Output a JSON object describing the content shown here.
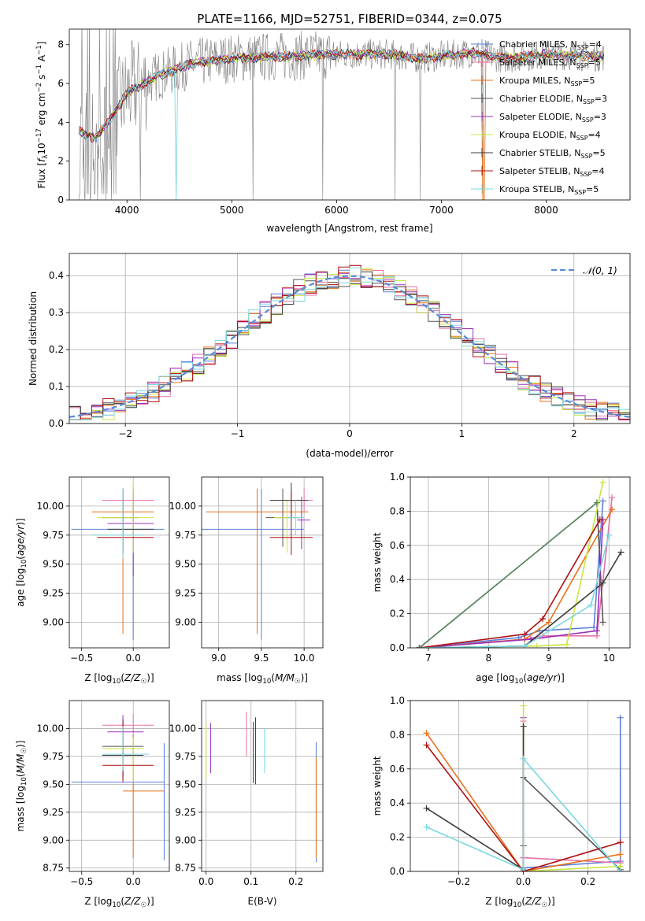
{
  "figure_title": "PLATE=1166, MJD=52751, FIBERID=0344, z=0.075",
  "colors": {
    "Chabrier MILES": "#5b7fd8",
    "Salpeter MILES": "#e86fa8",
    "Kroupa MILES": "#e8701a",
    "Chabrier ELODIE": "#555555",
    "Salpeter ELODIE": "#9b30b8",
    "Kroupa ELODIE": "#c8e641",
    "Chabrier STELIB": "#3b3b3b",
    "Salpeter STELIB": "#b01010",
    "Kroupa STELIB": "#7ad8e0",
    "data": "#808080",
    "normal": "#5b8bd8",
    "green_line": "#5a8a60"
  },
  "chart_data": [
    {
      "id": "spectrum",
      "type": "line",
      "xlabel": "wavelength [Angstrom, rest frame]",
      "ylabel": "Flux [fλ10⁻¹⁷ erg cm⁻² s⁻¹ A⁻¹]",
      "xlim": [
        3450,
        8800
      ],
      "ylim": [
        0,
        8.8
      ],
      "xticks": [
        4000,
        5000,
        6000,
        7000,
        8000
      ],
      "yticks": [
        0,
        2,
        4,
        6,
        8
      ],
      "grid": false,
      "legend_position": "top-right",
      "series": [
        {
          "name": "Chabrier MILES, N",
          "sub": "SSP",
          "suffix": "=4"
        },
        {
          "name": "Salpeter MILES, N",
          "sub": "SSP",
          "suffix": "=5"
        },
        {
          "name": "Kroupa MILES, N",
          "sub": "SSP",
          "suffix": "=5"
        },
        {
          "name": "Chabrier ELODIE, N",
          "sub": "SSP",
          "suffix": "=3"
        },
        {
          "name": "Salpeter ELODIE, N",
          "sub": "SSP",
          "suffix": "=3"
        },
        {
          "name": "Kroupa ELODIE, N",
          "sub": "SSP",
          "suffix": "=4"
        },
        {
          "name": "Chabrier STELIB, N",
          "sub": "SSP",
          "suffix": "=5"
        },
        {
          "name": "Salpeter STELIB, N",
          "sub": "SSP",
          "suffix": "=4"
        },
        {
          "name": "Kroupa STELIB, N",
          "sub": "SSP",
          "suffix": "=5"
        }
      ],
      "continuum": [
        [
          3550,
          3.5
        ],
        [
          3700,
          3.2
        ],
        [
          3850,
          4.2
        ],
        [
          4000,
          5.5
        ],
        [
          4300,
          6.4
        ],
        [
          4600,
          7.0
        ],
        [
          5000,
          7.3
        ],
        [
          5500,
          7.4
        ],
        [
          6000,
          7.5
        ],
        [
          6500,
          7.5
        ],
        [
          6800,
          7.3
        ],
        [
          7000,
          7.4
        ],
        [
          7300,
          7.6
        ],
        [
          7600,
          7.3
        ],
        [
          8000,
          7.5
        ],
        [
          8500,
          7.4
        ]
      ],
      "data_spikes_to_zero": [
        3540,
        3600,
        3650,
        3720,
        3800,
        3850,
        4130,
        5200,
        5870,
        6560,
        6800,
        7400
      ]
    },
    {
      "id": "residuals",
      "type": "histogram",
      "xlabel": "(data-model)/error",
      "ylabel": "Normed distribution",
      "xlim": [
        -2.5,
        2.5
      ],
      "ylim": [
        0,
        0.46
      ],
      "xticks": [
        -2,
        -1,
        0,
        1,
        2
      ],
      "yticks": [
        0.0,
        0.1,
        0.2,
        0.3,
        0.4
      ],
      "grid": true,
      "legend_position": "top-right",
      "legend_label": "𝒩(0, 1)",
      "bin_width": 0.1
    },
    {
      "id": "age_vs_Z",
      "type": "errorbar",
      "xlabel": "Z [log₁₀(Z/Z☉)]",
      "ylabel": "age  [log₁₀(age/yr)]",
      "xlim": [
        -0.62,
        0.35
      ],
      "ylim": [
        8.78,
        10.25
      ],
      "xticks": [
        -0.5,
        0.0
      ],
      "yticks": [
        9.0,
        9.25,
        9.5,
        9.75,
        10.0
      ],
      "grid": true,
      "points": [
        {
          "series": "Chabrier MILES",
          "x": 0.0,
          "xerr": [
            0.6,
            0.3
          ],
          "y": 9.8,
          "yerr": [
            0.95,
            0.35
          ]
        },
        {
          "series": "Salpeter MILES",
          "x": 0.0,
          "xerr": [
            0.3,
            0.2
          ],
          "y": 10.05,
          "yerr": [
            0.15,
            0.12
          ]
        },
        {
          "series": "Kroupa MILES",
          "x": -0.1,
          "xerr": [
            0.3,
            0.3
          ],
          "y": 9.95,
          "yerr": [
            1.05,
            0.2
          ]
        },
        {
          "series": "Chabrier ELODIE",
          "x": -0.1,
          "xerr": [
            0.2,
            0.15
          ],
          "y": 9.9,
          "yerr": [
            0.25,
            0.25
          ]
        },
        {
          "series": "Salpeter ELODIE",
          "x": 0.0,
          "xerr": [
            0.25,
            0.2
          ],
          "y": 9.85,
          "yerr": [
            0.45,
            0.25
          ]
        },
        {
          "series": "Kroupa ELODIE",
          "x": 0.0,
          "xerr": [
            0.35,
            0.2
          ],
          "y": 9.9,
          "yerr": [
            0.3,
            0.3
          ]
        },
        {
          "series": "Chabrier STELIB",
          "x": -0.1,
          "xerr": [
            0.15,
            0.3
          ],
          "y": 9.8,
          "yerr": [
            0.2,
            0.35
          ]
        },
        {
          "series": "Salpeter STELIB",
          "x": -0.1,
          "xerr": [
            0.25,
            0.3
          ],
          "y": 9.73,
          "yerr": [
            0.15,
            0.4
          ]
        },
        {
          "series": "Kroupa STELIB",
          "x": -0.1,
          "xerr": [
            0.3,
            0.2
          ],
          "y": 9.75,
          "yerr": [
            0.2,
            0.4
          ]
        }
      ]
    },
    {
      "id": "age_vs_mass",
      "type": "errorbar",
      "xlabel": "mass [log₁₀(M/M☉)]",
      "ylabel": "",
      "xlim": [
        8.8,
        10.22
      ],
      "ylim": [
        8.78,
        10.25
      ],
      "xticks": [
        9.0,
        9.5,
        10.0
      ],
      "yticks": [
        9.0,
        9.25,
        9.5,
        9.75,
        10.0
      ],
      "grid": true,
      "points": [
        {
          "series": "Chabrier MILES",
          "x": 9.5,
          "xerr": [
            0.7,
            0.5
          ],
          "y": 9.8,
          "yerr": [
            0.95,
            0.35
          ]
        },
        {
          "series": "Salpeter MILES",
          "x": 10.0,
          "xerr": [
            0.15,
            0.1
          ],
          "y": 10.05,
          "yerr": [
            0.1,
            0.1
          ]
        },
        {
          "series": "Kroupa MILES",
          "x": 9.45,
          "xerr": [
            0.6,
            0.6
          ],
          "y": 9.95,
          "yerr": [
            1.05,
            0.2
          ]
        },
        {
          "series": "Chabrier ELODIE",
          "x": 9.75,
          "xerr": [
            0.2,
            0.2
          ],
          "y": 9.9,
          "yerr": [
            0.25,
            0.25
          ]
        },
        {
          "series": "Salpeter ELODIE",
          "x": 9.97,
          "xerr": [
            0.05,
            0.1
          ],
          "y": 9.88,
          "yerr": [
            0.25,
            0.2
          ]
        },
        {
          "series": "Kroupa ELODIE",
          "x": 9.8,
          "xerr": [
            0.15,
            0.15
          ],
          "y": 9.9,
          "yerr": [
            0.3,
            0.15
          ]
        },
        {
          "series": "Chabrier STELIB",
          "x": 9.85,
          "xerr": [
            0.25,
            0.2
          ],
          "y": 10.05,
          "yerr": [
            0.15,
            0.15
          ]
        },
        {
          "series": "Salpeter STELIB",
          "x": 9.85,
          "xerr": [
            0.25,
            0.25
          ],
          "y": 9.73,
          "yerr": [
            0.15,
            0.4
          ]
        },
        {
          "series": "Kroupa STELIB",
          "x": 9.9,
          "xerr": [
            0.1,
            0.1
          ],
          "y": 9.9,
          "yerr": [
            0.15,
            0.15
          ]
        }
      ]
    },
    {
      "id": "massweight_vs_age",
      "type": "line",
      "xlabel": "age  [log₁₀(age/yr)]",
      "ylabel": "mass weight",
      "xlim": [
        6.7,
        10.35
      ],
      "ylim": [
        0.0,
        1.0
      ],
      "xticks": [
        7,
        8,
        9,
        10
      ],
      "yticks": [
        0.0,
        0.2,
        0.4,
        0.6,
        0.8,
        1.0
      ],
      "grid": true,
      "series": [
        {
          "name": "Chabrier MILES",
          "x": [
            6.85,
            8.5,
            8.85,
            9.75,
            9.9
          ],
          "y": [
            0.0,
            0.06,
            0.1,
            0.12,
            0.86
          ]
        },
        {
          "name": "Salpeter MILES",
          "x": [
            6.85,
            8.6,
            8.9,
            9.8,
            10.05
          ],
          "y": [
            0.0,
            0.05,
            0.07,
            0.07,
            0.88
          ]
        },
        {
          "name": "Kroupa MILES",
          "x": [
            6.85,
            8.6,
            9.0,
            10.05
          ],
          "y": [
            0.0,
            0.05,
            0.15,
            0.81
          ]
        },
        {
          "name": "Chabrier ELODIE",
          "x": [
            6.85,
            9.8,
            9.9
          ],
          "y": [
            0.0,
            0.85,
            0.15
          ]
        },
        {
          "name": "Salpeter ELODIE",
          "x": [
            6.85,
            8.7,
            9.8,
            9.9
          ],
          "y": [
            0.0,
            0.05,
            0.1,
            0.75
          ]
        },
        {
          "name": "Kroupa ELODIE",
          "x": [
            6.85,
            8.8,
            9.3,
            9.9
          ],
          "y": [
            0.0,
            0.01,
            0.02,
            0.97
          ]
        },
        {
          "name": "Chabrier STELIB",
          "x": [
            6.85,
            8.6,
            9.9,
            10.2
          ],
          "y": [
            0.0,
            0.01,
            0.38,
            0.56
          ]
        },
        {
          "name": "Salpeter STELIB",
          "x": [
            6.85,
            8.6,
            8.9,
            9.85
          ],
          "y": [
            0.0,
            0.08,
            0.17,
            0.75
          ]
        },
        {
          "name": "Kroupa STELIB",
          "x": [
            6.85,
            8.6,
            9.7,
            10.0
          ],
          "y": [
            0.0,
            0.01,
            0.25,
            0.66
          ]
        },
        {
          "name": "green",
          "x": [
            6.85,
            9.8
          ],
          "y": [
            0.0,
            0.85
          ]
        }
      ]
    },
    {
      "id": "mass_vs_Z",
      "type": "errorbar",
      "xlabel": "Z [log₁₀(Z/Z☉)]",
      "ylabel": "mass [log₁₀(M/M☉)]",
      "xlim": [
        -0.62,
        0.35
      ],
      "ylim": [
        8.72,
        10.25
      ],
      "xticks": [
        -0.5,
        0.0
      ],
      "yticks": [
        8.75,
        9.0,
        9.25,
        9.5,
        9.75,
        10.0
      ],
      "grid": true,
      "points": [
        {
          "series": "Chabrier MILES",
          "x": 0.3,
          "xerr": [
            0.9,
            0.0
          ],
          "y": 9.52,
          "yerr": [
            0.7,
            0.35
          ]
        },
        {
          "series": "Salpeter MILES",
          "x": 0.0,
          "xerr": [
            0.3,
            0.2
          ],
          "y": 10.03,
          "yerr": [
            0.1,
            0.1
          ]
        },
        {
          "series": "Kroupa MILES",
          "x": 0.0,
          "xerr": [
            0.1,
            0.3
          ],
          "y": 9.44,
          "yerr": [
            0.6,
            0.5
          ]
        },
        {
          "series": "Chabrier ELODIE",
          "x": -0.1,
          "xerr": [
            0.2,
            0.2
          ],
          "y": 9.84,
          "yerr": [
            0.3,
            0.25
          ]
        },
        {
          "series": "Salpeter ELODIE",
          "x": -0.1,
          "xerr": [
            0.15,
            0.2
          ],
          "y": 9.97,
          "yerr": [
            0.2,
            0.15
          ]
        },
        {
          "series": "Kroupa ELODIE",
          "x": 0.0,
          "xerr": [
            0.3,
            0.1
          ],
          "y": 9.82,
          "yerr": [
            0.3,
            0.1
          ]
        },
        {
          "series": "Chabrier STELIB",
          "x": -0.1,
          "xerr": [
            0.2,
            0.2
          ],
          "y": 9.76,
          "yerr": [
            0.2,
            0.3
          ]
        },
        {
          "series": "Salpeter STELIB",
          "x": -0.1,
          "xerr": [
            0.2,
            0.3
          ],
          "y": 9.67,
          "yerr": [
            0.15,
            0.4
          ]
        },
        {
          "series": "Kroupa STELIB",
          "x": -0.1,
          "xerr": [
            0.2,
            0.25
          ],
          "y": 9.77,
          "yerr": [
            0.15,
            0.25
          ]
        }
      ]
    },
    {
      "id": "mass_vs_ebv",
      "type": "errorbar",
      "xlabel": "E(B-V)",
      "ylabel": "",
      "xlim": [
        -0.01,
        0.26
      ],
      "ylim": [
        8.72,
        10.25
      ],
      "xticks": [
        0.0,
        0.1,
        0.2
      ],
      "yticks": [
        8.75,
        9.0,
        9.25,
        9.5,
        9.75,
        10.0
      ],
      "grid": true,
      "points": [
        {
          "series": "Chabrier MILES",
          "x": 0.245,
          "y": 9.5,
          "yerr": [
            0.7,
            0.38
          ]
        },
        {
          "series": "Salpeter MILES",
          "x": 0.09,
          "y": 9.95,
          "yerr": [
            0.2,
            0.2
          ]
        },
        {
          "series": "Kroupa MILES",
          "x": 0.245,
          "y": 9.44,
          "yerr": [
            0.6,
            0.3
          ]
        },
        {
          "series": "Chabrier ELODIE",
          "x": 0.11,
          "y": 9.84,
          "yerr": [
            0.25,
            0.25
          ]
        },
        {
          "series": "Salpeter ELODIE",
          "x": 0.01,
          "y": 9.85,
          "yerr": [
            0.25,
            0.2
          ]
        },
        {
          "series": "Kroupa ELODIE",
          "x": 0.0,
          "y": 9.8,
          "yerr": [
            0.25,
            0.25
          ]
        },
        {
          "series": "Chabrier STELIB",
          "x": 0.105,
          "y": 9.76,
          "yerr": [
            0.25,
            0.3
          ]
        },
        {
          "series": "Salpeter STELIB",
          "x": 0.11,
          "y": 9.8,
          "yerr": [
            0.3,
            0.3
          ]
        },
        {
          "series": "Kroupa STELIB",
          "x": 0.13,
          "y": 9.8,
          "yerr": [
            0.2,
            0.2
          ]
        }
      ]
    },
    {
      "id": "massweight_vs_Z",
      "type": "line",
      "xlabel": "Z [log₁₀(Z/Z☉)]",
      "ylabel": "mass weight",
      "xlim": [
        -0.35,
        0.33
      ],
      "ylim": [
        0.0,
        1.0
      ],
      "xticks": [
        -0.2,
        0.0,
        0.2
      ],
      "yticks": [
        0.0,
        0.2,
        0.4,
        0.6,
        0.8,
        1.0
      ],
      "grid": true,
      "series": [
        {
          "name": "Chabrier MILES",
          "x": [
            0.0,
            0.3,
            0.3
          ],
          "y": [
            0.02,
            0.06,
            0.9
          ]
        },
        {
          "name": "Salpeter MILES",
          "x": [
            0.0,
            0.0,
            0.3
          ],
          "y": [
            0.88,
            0.08,
            0.05
          ]
        },
        {
          "name": "Kroupa MILES",
          "x": [
            -0.3,
            0.0,
            0.3
          ],
          "y": [
            0.81,
            0.0,
            0.1
          ]
        },
        {
          "name": "Chabrier ELODIE",
          "x": [
            0.0,
            0.0,
            0.3
          ],
          "y": [
            0.15,
            0.55,
            0.01
          ]
        },
        {
          "name": "Salpeter ELODIE",
          "x": [
            0.0,
            0.0
          ],
          "y": [
            0.9,
            0.0
          ]
        },
        {
          "name": "Kroupa ELODIE",
          "x": [
            0.0,
            0.0,
            0.3
          ],
          "y": [
            0.97,
            0.0,
            0.03
          ]
        },
        {
          "name": "Chabrier STELIB",
          "x": [
            -0.3,
            0.0,
            0.0
          ],
          "y": [
            0.37,
            0.01,
            0.85
          ]
        },
        {
          "name": "Salpeter STELIB",
          "x": [
            -0.3,
            0.0,
            0.3
          ],
          "y": [
            0.74,
            0.0,
            0.17
          ]
        },
        {
          "name": "Kroupa STELIB",
          "x": [
            -0.3,
            0.0,
            0.0,
            0.3
          ],
          "y": [
            0.26,
            0.01,
            0.66,
            0.0
          ]
        }
      ]
    }
  ]
}
